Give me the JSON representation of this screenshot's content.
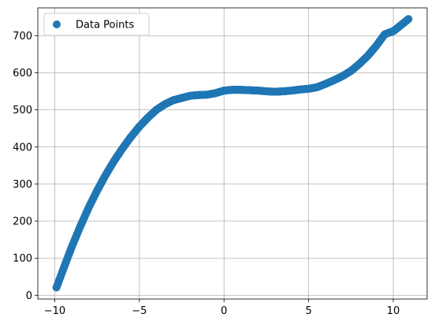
{
  "chart_data": {
    "type": "scatter",
    "title": "",
    "xlabel": "",
    "ylabel": "",
    "xlim": [
      -11.0,
      12.0
    ],
    "ylim": [
      -10,
      775
    ],
    "xticks": [
      -10,
      -5,
      0,
      5,
      10
    ],
    "yticks": [
      0,
      100,
      200,
      300,
      400,
      500,
      600,
      700
    ],
    "xtick_labels": [
      "−10",
      "−5",
      "0",
      "5",
      "10"
    ],
    "ytick_labels": [
      "0",
      "100",
      "200",
      "300",
      "400",
      "500",
      "600",
      "700"
    ],
    "grid": true,
    "legend_position": "upper-left",
    "series": [
      {
        "name": "Data Points",
        "color": "#1f77b4",
        "marker": "circle",
        "x_range": [
          -9.9,
          10.9
        ],
        "curve": "cubic y = 0.5x^3 - 4.5x^2 + 6x + 552",
        "x": [
          -9.9,
          -9.5,
          -9.0,
          -8.5,
          -8.0,
          -7.5,
          -7.0,
          -6.5,
          -6.0,
          -5.5,
          -5.0,
          -4.5,
          -4.0,
          -3.5,
          -3.0,
          -2.5,
          -2.0,
          -1.5,
          -1.0,
          -0.5,
          0.0,
          0.5,
          1.0,
          1.5,
          2.0,
          2.5,
          3.0,
          3.5,
          4.0,
          4.5,
          5.0,
          5.5,
          6.0,
          6.5,
          7.0,
          7.5,
          8.0,
          8.5,
          9.0,
          9.5,
          10.0,
          10.5,
          10.9
        ],
        "y": [
          21,
          70,
          130,
          185,
          236,
          282,
          324,
          362,
          396,
          427,
          455,
          479,
          500,
          515,
          526,
          532,
          538,
          540,
          541,
          545,
          552,
          554,
          554,
          553,
          552,
          550,
          549,
          550,
          552,
          555,
          557,
          561,
          570,
          580,
          591,
          605,
          624,
          646,
          673,
          704,
          712,
          730,
          745
        ]
      }
    ]
  }
}
